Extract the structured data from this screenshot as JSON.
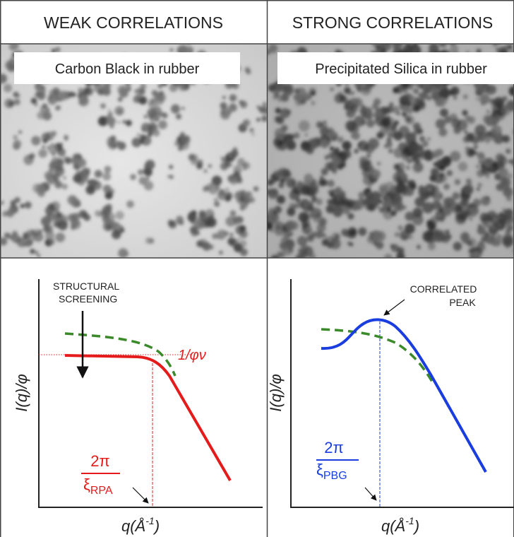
{
  "panels": [
    {
      "header": "WEAK CORRELATIONS",
      "image_label": "Carbon Black in rubber",
      "plot": {
        "annotation": [
          "STRUCTURAL",
          "SCREENING"
        ],
        "level_label": "1/φν",
        "y_label": "I(q)/φ",
        "x_label": {
          "base": "q(Å",
          "exponent": "-1",
          "close": ")"
        },
        "length_label": {
          "numerator": "2π",
          "symbol": "ξ",
          "subscript": "RPA"
        }
      }
    },
    {
      "header": "STRONG CORRELATIONS",
      "image_label": "Precipitated Silica in rubber",
      "plot": {
        "annotation": [
          "CORRELATED",
          "PEAK"
        ],
        "y_label": "I(q)/φ",
        "x_label": {
          "base": "q(Å",
          "exponent": "-1",
          "close": ")"
        },
        "length_label": {
          "numerator": "2π",
          "symbol": "ξ",
          "subscript": "PBG"
        }
      }
    }
  ]
}
